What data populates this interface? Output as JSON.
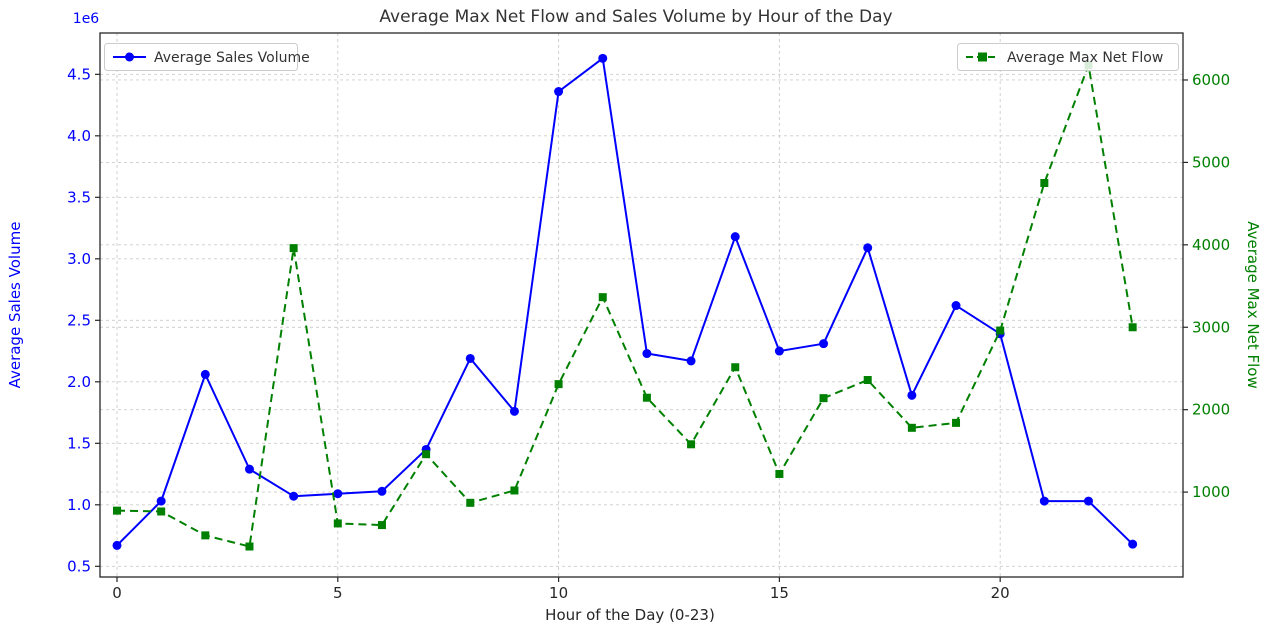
{
  "figure": {
    "title": "Average Max Net Flow and Sales Volume by Hour of the Day",
    "offset_text": "1e6"
  },
  "colors": {
    "sales_volume": "#0000ff",
    "net_flow": "#008000",
    "title_text": "#333333",
    "tick_text": "#262626",
    "grid": "#cccccc",
    "spine": "#262626",
    "legend_border": "#cccccc"
  },
  "chart_data": {
    "type": "line",
    "title": "Average Max Net Flow and Sales Volume by Hour of the Day",
    "xlabel": "Hour of the Day (0-23)",
    "grid": true,
    "x": [
      0,
      1,
      2,
      3,
      4,
      5,
      6,
      7,
      8,
      9,
      10,
      11,
      12,
      13,
      14,
      15,
      16,
      17,
      18,
      19,
      20,
      21,
      22,
      23
    ],
    "series": [
      {
        "name": "Average Sales Volume",
        "axis": "left",
        "color": "#0000ff",
        "line_style": "solid",
        "marker": "circle",
        "unit": "1e6",
        "values": [
          0.67,
          1.03,
          2.06,
          1.29,
          1.07,
          1.09,
          1.11,
          1.45,
          2.19,
          1.76,
          4.36,
          4.63,
          2.23,
          2.17,
          3.18,
          2.25,
          2.31,
          3.09,
          1.89,
          2.62,
          2.39,
          1.03,
          1.03,
          0.68
        ]
      },
      {
        "name": "Average Max Net Flow",
        "axis": "right",
        "color": "#008000",
        "line_style": "dashed",
        "marker": "square",
        "unit": "",
        "values": [
          775,
          765,
          475,
          340,
          3960,
          620,
          600,
          1460,
          870,
          1020,
          2310,
          3365,
          2145,
          1580,
          2515,
          1220,
          2140,
          2360,
          1780,
          1840,
          2960,
          4750,
          6180,
          3000
        ]
      }
    ],
    "x_axis": {
      "label": "Hour of the Day (0-23)",
      "ticks": [
        0,
        5,
        10,
        15,
        20
      ],
      "tick_labels": [
        "0",
        "5",
        "10",
        "15",
        "20"
      ],
      "range": [
        -0.385,
        24.14
      ]
    },
    "left_axis": {
      "label": "Average Sales Volume",
      "color": "#0000ff",
      "offset_text": "1e6",
      "ticks": [
        0.5,
        1.0,
        1.5,
        2.0,
        2.5,
        3.0,
        3.5,
        4.0,
        4.5
      ],
      "tick_labels": [
        "0.5",
        "1.0",
        "1.5",
        "2.0",
        "2.5",
        "3.0",
        "3.5",
        "4.0",
        "4.5"
      ],
      "range": [
        0.413,
        4.836
      ]
    },
    "right_axis": {
      "label": "Average Max Net Flow",
      "color": "#008000",
      "ticks": [
        1000,
        2000,
        3000,
        4000,
        5000,
        6000
      ],
      "tick_labels": [
        "1000",
        "2000",
        "3000",
        "4000",
        "5000",
        "6000"
      ],
      "range": [
        -30,
        6570
      ]
    },
    "legend": [
      {
        "label": "Average Sales Volume",
        "position": "upper-left"
      },
      {
        "label": "Average Max Net Flow",
        "position": "upper-right"
      }
    ]
  }
}
